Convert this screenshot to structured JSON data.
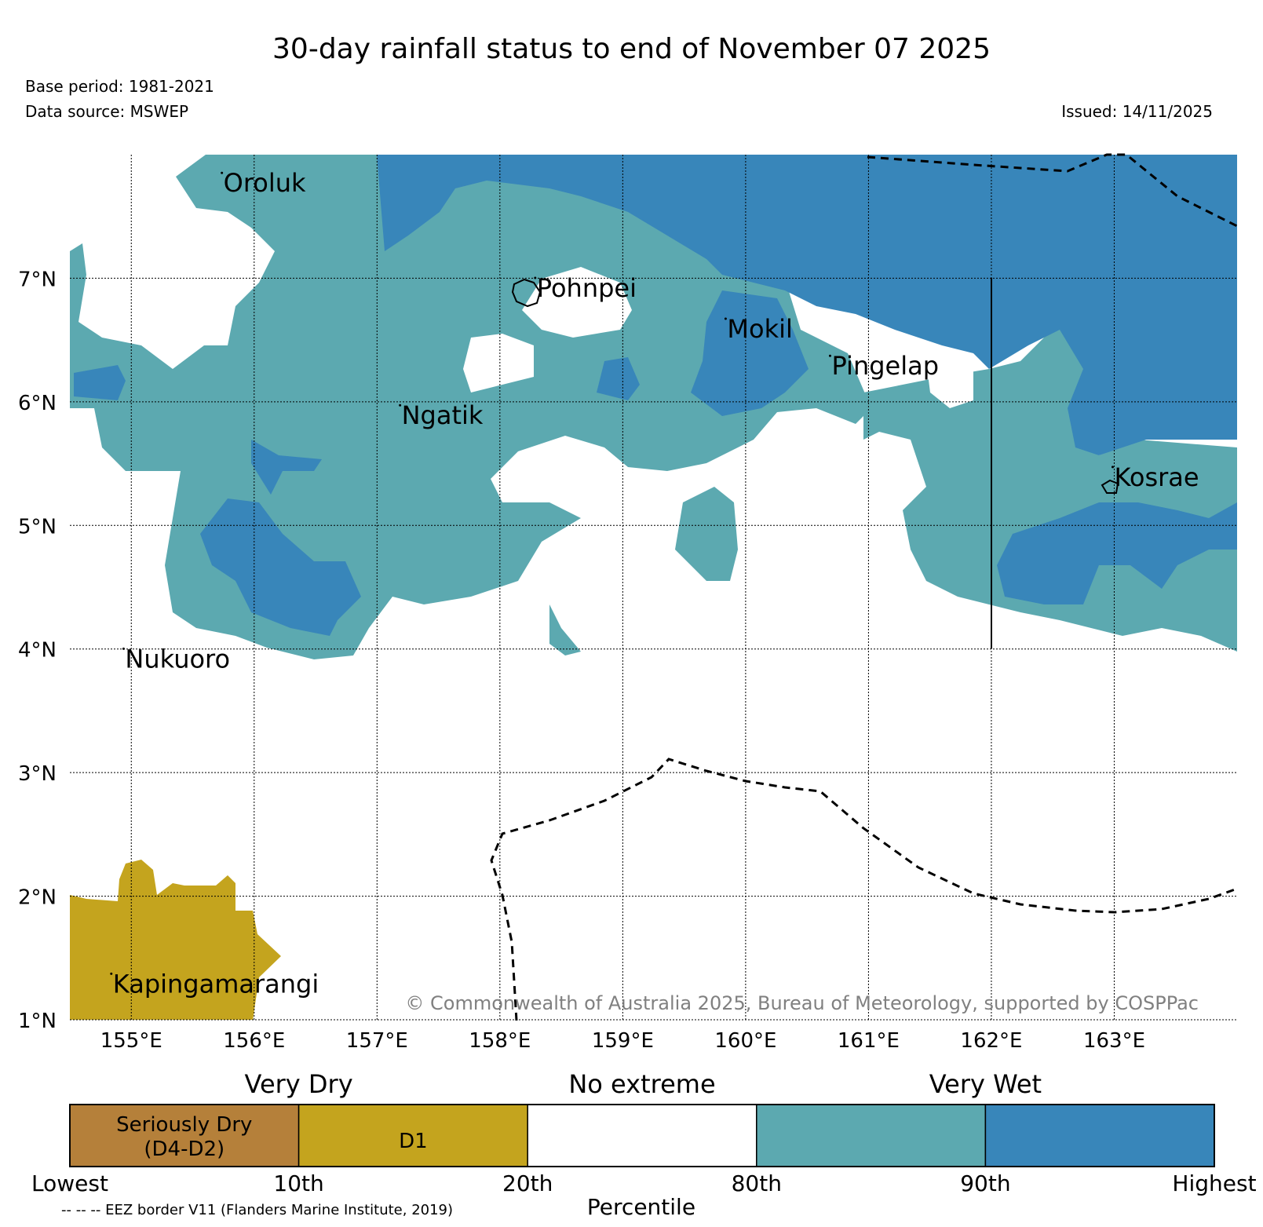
{
  "header": {
    "title": "30-day rainfall status to end of November 07 2025",
    "base_period": "Base period: 1981-2021",
    "data_source": "Data source: MSWEP",
    "issued": "Issued: 14/11/2025"
  },
  "map": {
    "extent": {
      "lon_min": 154.5,
      "lon_max": 164.0,
      "lat_min": 1.0,
      "lat_max": 8.0
    },
    "lat_ticks": [
      {
        "value": 1,
        "label": "1°N"
      },
      {
        "value": 2,
        "label": "2°N"
      },
      {
        "value": 3,
        "label": "3°N"
      },
      {
        "value": 4,
        "label": "4°N"
      },
      {
        "value": 5,
        "label": "5°N"
      },
      {
        "value": 6,
        "label": "6°N"
      },
      {
        "value": 7,
        "label": "7°N"
      }
    ],
    "lon_ticks": [
      {
        "value": 155,
        "label": "155°E"
      },
      {
        "value": 156,
        "label": "156°E"
      },
      {
        "value": 157,
        "label": "157°E"
      },
      {
        "value": 158,
        "label": "158°E"
      },
      {
        "value": 159,
        "label": "159°E"
      },
      {
        "value": 160,
        "label": "160°E"
      },
      {
        "value": 161,
        "label": "161°E"
      },
      {
        "value": 162,
        "label": "162°E"
      },
      {
        "value": 163,
        "label": "163°E"
      }
    ],
    "gridlines": true,
    "places": [
      {
        "name": "Oroluk",
        "lon": 155.75,
        "lat": 7.7
      },
      {
        "name": "Pohnpei",
        "lon": 158.3,
        "lat": 6.85
      },
      {
        "name": "Mokil",
        "lon": 159.85,
        "lat": 6.52
      },
      {
        "name": "Pingelap",
        "lon": 160.7,
        "lat": 6.22
      },
      {
        "name": "Ngatik",
        "lon": 157.2,
        "lat": 5.82
      },
      {
        "name": "Kosrae",
        "lon": 163.0,
        "lat": 5.32
      },
      {
        "name": "Nukuoro",
        "lon": 154.95,
        "lat": 3.85
      },
      {
        "name": "Kapingamarangi",
        "lon": 154.85,
        "lat": 1.22
      }
    ],
    "copyright": "© Commonwealth of Australia 2025, Bureau of Meteorology, supported by COSPPac",
    "colors": {
      "d1": "#c4a41e",
      "wet": "#5ca9b0",
      "very_wet": "#3886ba",
      "seriously_dry": "#b5803a"
    }
  },
  "legend": {
    "categories": [
      "Very Dry",
      "No extreme",
      "Very Wet"
    ],
    "boxes": [
      {
        "label": "Seriously Dry",
        "label2": "(D4-D2)",
        "color": "#b5803a"
      },
      {
        "label": "D1",
        "label2": "",
        "color": "#c4a41e"
      },
      {
        "label": "",
        "label2": "",
        "color": "#ffffff"
      },
      {
        "label": "",
        "label2": "",
        "color": "#5ca9b0"
      },
      {
        "label": "",
        "label2": "",
        "color": "#3886ba"
      }
    ],
    "ticks": [
      "Lowest",
      "10th",
      "20th",
      "80th",
      "90th",
      "Highest"
    ],
    "xlabel": "Percentile",
    "eez_note": "-- -- -- EEZ border V11 (Flanders Marine Institute, 2019)"
  }
}
